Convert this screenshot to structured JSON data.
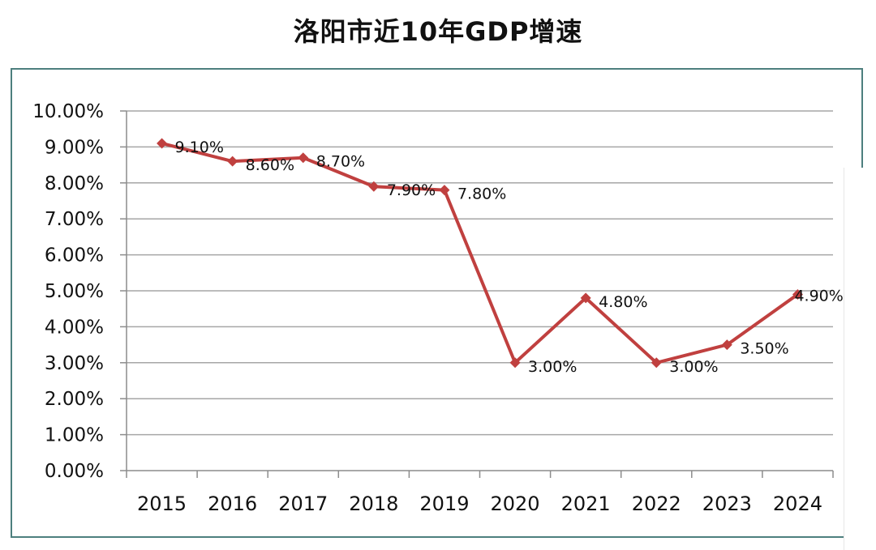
{
  "chart_data": {
    "type": "line",
    "title": "洛阳市近10年GDP增速",
    "categories": [
      "2015",
      "2016",
      "2017",
      "2018",
      "2019",
      "2020",
      "2021",
      "2022",
      "2023",
      "2024"
    ],
    "series": [
      {
        "name": "GDP增速",
        "values": [
          9.1,
          8.6,
          8.7,
          7.9,
          7.8,
          3.0,
          4.8,
          3.0,
          3.5,
          4.9
        ],
        "labels": [
          "9.10%",
          "8.60%",
          "8.70%",
          "7.90%",
          "7.80%",
          "3.00%",
          "4.80%",
          "3.00%",
          "3.50%",
          "4.90%"
        ]
      }
    ],
    "yticks": [
      0,
      1,
      2,
      3,
      4,
      5,
      6,
      7,
      8,
      9,
      10
    ],
    "ytick_labels": [
      "0.00%",
      "1.00%",
      "2.00%",
      "3.00%",
      "4.00%",
      "5.00%",
      "6.00%",
      "7.00%",
      "8.00%",
      "9.00%",
      "10.00%"
    ],
    "ylim": [
      0,
      10
    ],
    "xlabel": "",
    "ylabel": "",
    "grid": true,
    "colors": {
      "line": "#c0403f",
      "grid": "#a6a6a6",
      "axis": "#8c8c8c",
      "frame": "#4d7f7e"
    }
  }
}
